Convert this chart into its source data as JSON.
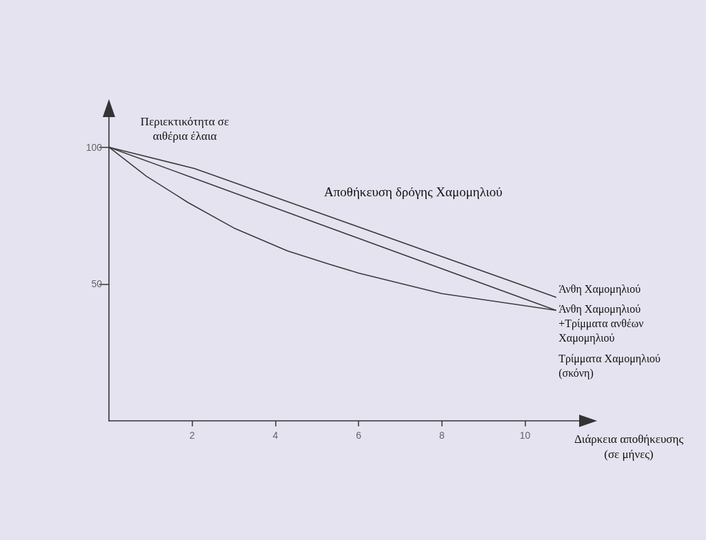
{
  "chart_data": {
    "type": "line",
    "title": "Αποθήκευση δρόγης Χαμομηλιού",
    "xlabel": "Διάρκεια αποθήκευσης (σε μήνες)",
    "ylabel": "Περιεκτικότητα σε αιθέρια έλαια",
    "xlim": [
      0,
      11.3
    ],
    "ylim": [
      0,
      111
    ],
    "xticks": [
      2,
      4,
      6,
      8,
      10
    ],
    "yticks": [
      50,
      100
    ],
    "grid": false,
    "legend": false,
    "marker": "none",
    "line_style": "solid",
    "series": [
      {
        "name": "Άνθη Χαμομηλιού",
        "color": "#3a3a3a",
        "x": [
          0,
          2.06,
          10.74
        ],
        "values": [
          100,
          92.2,
          45.2
        ]
      },
      {
        "name": "Άνθη Χαμομηλιού +Τρίμματα ανθέων Χαμομηλιού",
        "color": "#3a3a3a",
        "x": [
          0,
          10.74
        ],
        "values": [
          100,
          40.4
        ]
      },
      {
        "name": "Τρίμματα Χαμομηλιού (σκόνη)",
        "color": "#3a3a3a",
        "x": [
          0,
          0.9,
          1.9,
          3,
          4.29,
          5.33,
          6,
          8,
          10.74
        ],
        "values": [
          100,
          89.4,
          79.8,
          70.5,
          62.1,
          57.1,
          54,
          46.5,
          40.4
        ]
      }
    ]
  }
}
